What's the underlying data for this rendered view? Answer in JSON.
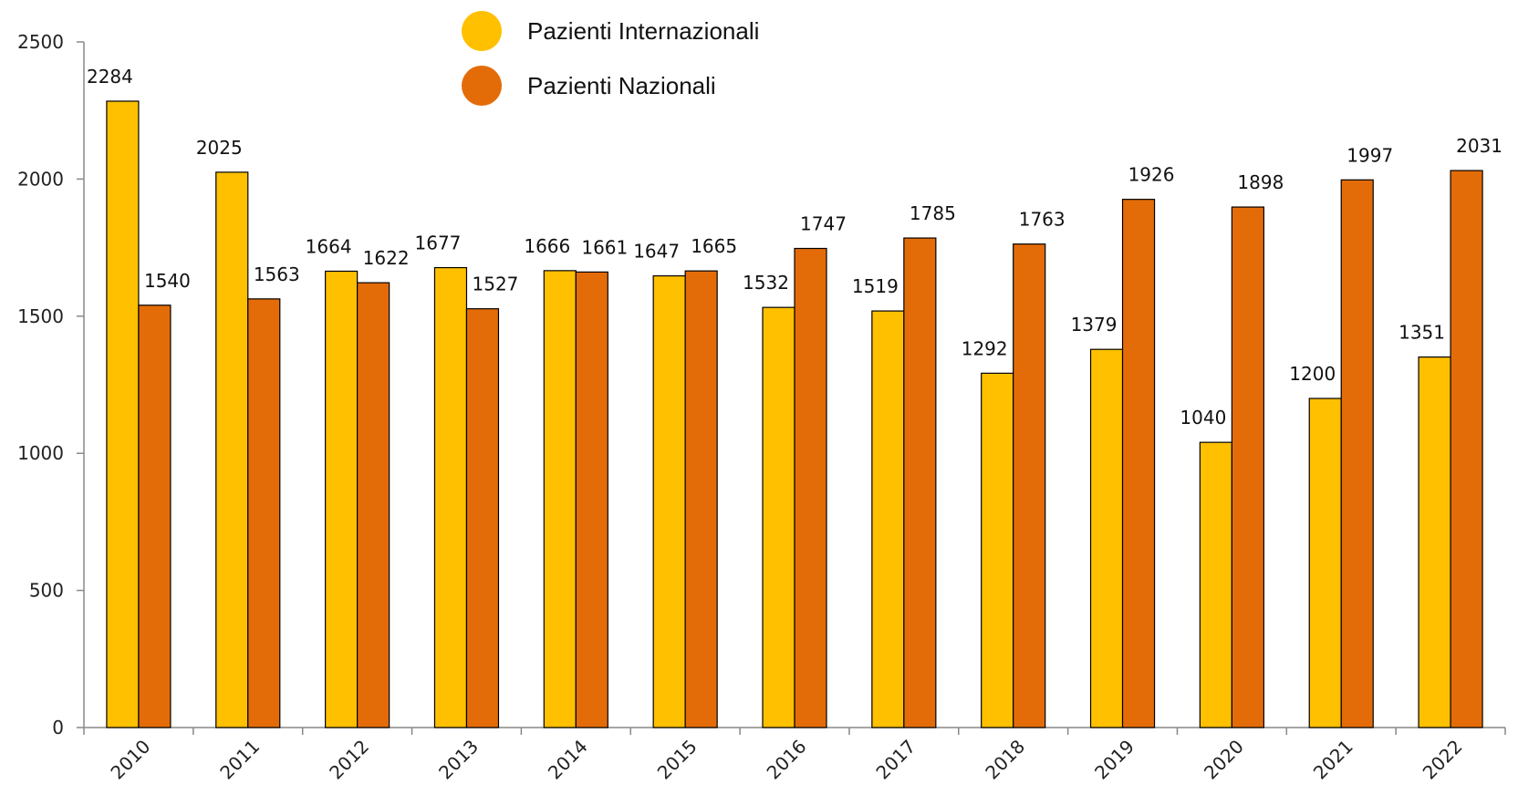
{
  "chart_data": {
    "type": "bar",
    "categories": [
      "2010",
      "2011",
      "2012",
      "2013",
      "2014",
      "2015",
      "2016",
      "2017",
      "2018",
      "2019",
      "2020",
      "2021",
      "2022"
    ],
    "series": [
      {
        "name": "Pazienti Internazionali",
        "color": "#FFC000",
        "values": [
          2284,
          2025,
          1664,
          1677,
          1666,
          1647,
          1532,
          1519,
          1292,
          1379,
          1040,
          1200,
          1351
        ]
      },
      {
        "name": "Pazienti Nazionali",
        "color": "#E36C09",
        "values": [
          1540,
          1563,
          1622,
          1527,
          1661,
          1665,
          1747,
          1785,
          1763,
          1926,
          1898,
          1997,
          2031
        ]
      }
    ],
    "ylim": [
      0,
      2500
    ],
    "yticks": [
      0,
      500,
      1000,
      1500,
      2000,
      2500
    ],
    "grid": false,
    "legend_position": "top-center"
  }
}
